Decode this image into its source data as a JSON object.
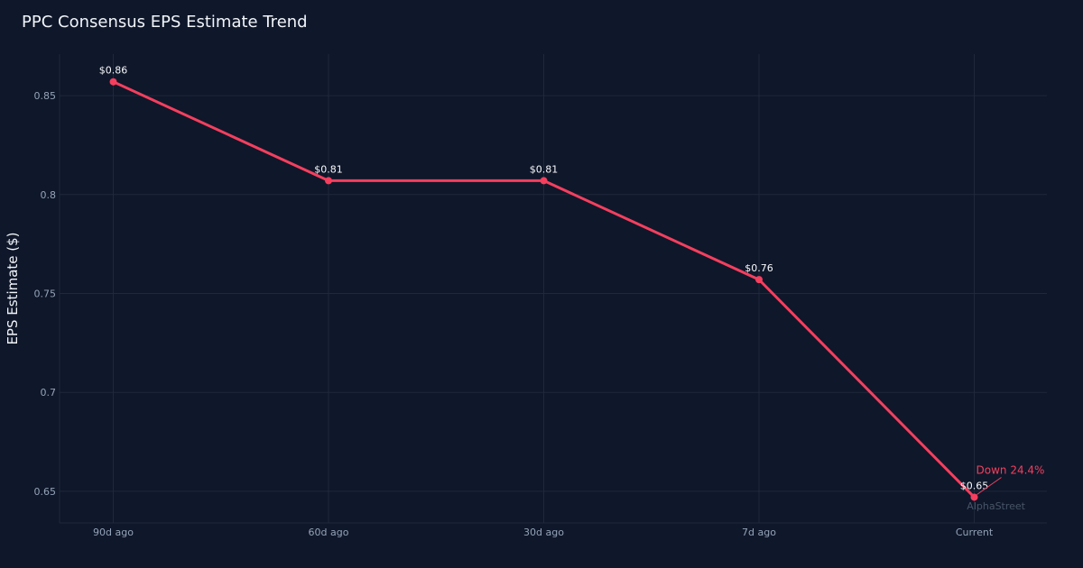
{
  "chart_data": {
    "type": "line",
    "title": "PPC Consensus EPS Estimate Trend",
    "xlabel": "",
    "ylabel": "EPS Estimate ($)",
    "categories": [
      "90d ago",
      "60d ago",
      "30d ago",
      "7d ago",
      "Current"
    ],
    "series": [
      {
        "values": [
          0.857,
          0.807,
          0.807,
          0.757,
          0.647
        ],
        "labels": [
          "$0.86",
          "$0.81",
          "$0.81",
          "$0.76",
          "$0.65"
        ]
      }
    ],
    "yticks": [
      0.65,
      0.7,
      0.75,
      0.8,
      0.85
    ],
    "ytick_labels": [
      "0.65",
      "0.7",
      "0.75",
      "0.8",
      "0.85"
    ],
    "ylim": [
      0.634,
      0.871
    ],
    "grid": true,
    "annotation": {
      "text": "Down 24.4%",
      "target_index": 4
    },
    "watermark": "AlphaStreet",
    "colors": {
      "background": "#0f172a",
      "line": "#f43f5e",
      "grid": "#1e293b",
      "tick_text": "#94a3b8",
      "text": "#f1f5f9"
    }
  }
}
